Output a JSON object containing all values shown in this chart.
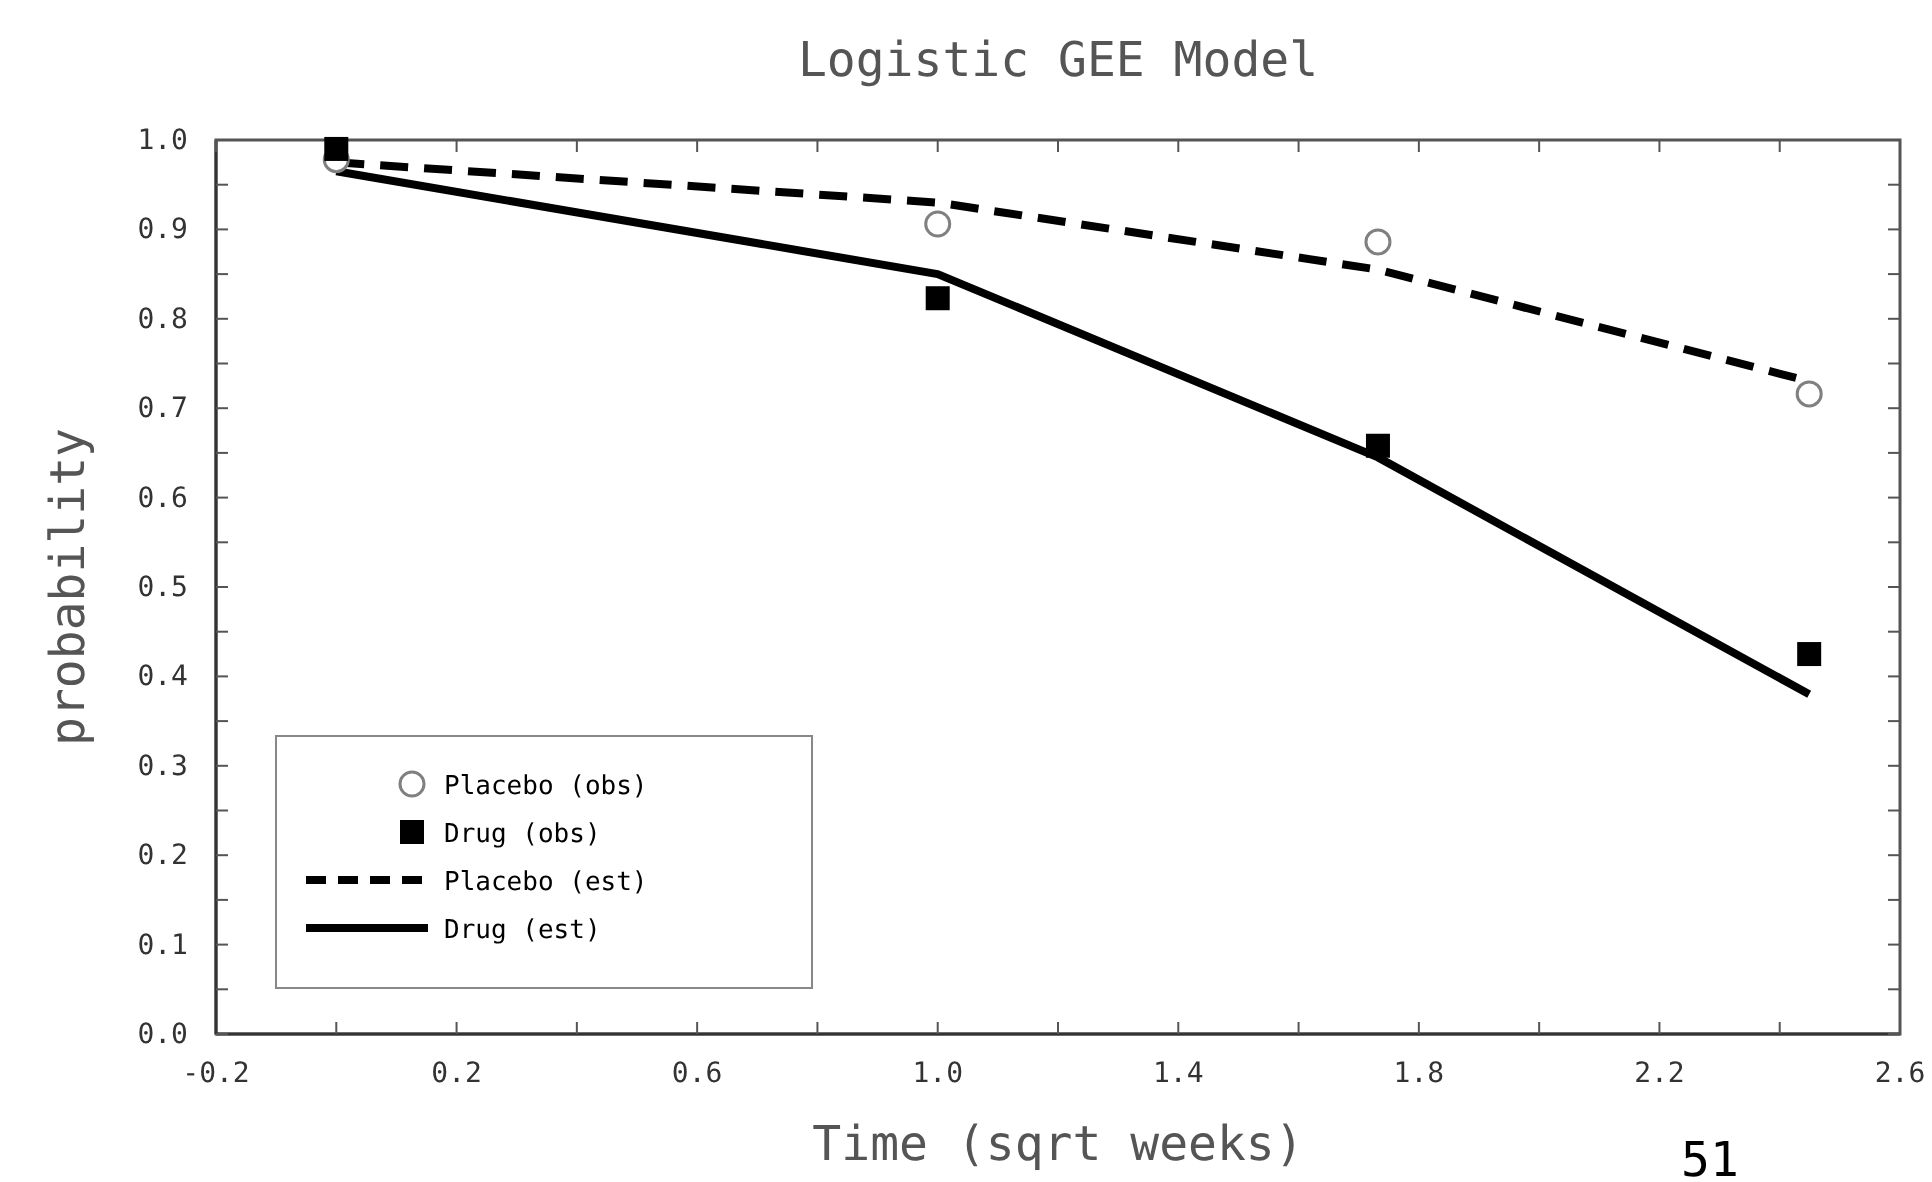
{
  "chart_data": {
    "type": "line",
    "title": "Logistic GEE Model",
    "xlabel": "Time (sqrt weeks)",
    "ylabel": "probability",
    "xlim": [
      -0.2,
      2.6
    ],
    "xticks": [
      -0.2,
      {
        "value": 0,
        "label": null
      },
      0.2,
      {
        "value": 0.4,
        "label": null
      },
      0.6,
      {
        "value": 0.8,
        "label": null
      },
      {
        "value": 1,
        "label": "1.0"
      },
      {
        "value": 1.2,
        "label": null
      },
      1.4,
      {
        "value": 1.6,
        "label": null
      },
      1.8,
      {
        "value": 2.0,
        "label": null
      },
      2.2,
      {
        "value": 2.4,
        "label": null
      },
      2.6
    ],
    "ylim": [
      0,
      1
    ],
    "yticks": [
      {
        "value": 0,
        "label": "0.0"
      },
      {
        "value": 0.05,
        "label": null
      },
      0.1,
      {
        "value": 0.15,
        "label": null
      },
      0.2,
      {
        "value": 0.25,
        "label": null
      },
      0.3,
      {
        "value": 0.35,
        "label": null
      },
      0.4,
      {
        "value": 0.45,
        "label": null
      },
      0.5,
      {
        "value": 0.55,
        "label": null
      },
      0.6,
      {
        "value": 0.65,
        "label": null
      },
      0.7,
      {
        "value": 0.75,
        "label": null
      },
      0.8,
      {
        "value": 0.85,
        "label": null
      },
      0.9,
      {
        "value": 0.95,
        "label": null
      },
      {
        "value": 1,
        "label": "1.0"
      }
    ],
    "grid": false,
    "legend": "bottom left",
    "series": [
      {
        "name": "Placebo (obs)",
        "type": "scatter",
        "marker": "circle",
        "color": "#808080",
        "x": [
          0,
          1,
          1.732,
          2.449
        ],
        "values": [
          0.978,
          0.906,
          0.886,
          0.716
        ]
      },
      {
        "name": "Drug (obs)",
        "type": "scatter",
        "marker": "square",
        "color": "#000000",
        "x": [
          0,
          1,
          1.732,
          2.449
        ],
        "values": [
          0.99,
          0.823,
          0.658,
          0.425
        ]
      },
      {
        "name": "Placebo (est)",
        "type": "line",
        "line_style": "dashed",
        "color": "#000000",
        "x": [
          0,
          1,
          1.732,
          2.449
        ],
        "values": [
          0.975,
          0.93,
          0.855,
          0.73
        ]
      },
      {
        "name": "Drug (est)",
        "type": "line",
        "line_style": "solid",
        "color": "#000000",
        "x": [
          0,
          1,
          1.732,
          2.449
        ],
        "values": [
          0.965,
          0.85,
          0.645,
          0.38
        ]
      }
    ],
    "annotations": [
      "51"
    ]
  }
}
